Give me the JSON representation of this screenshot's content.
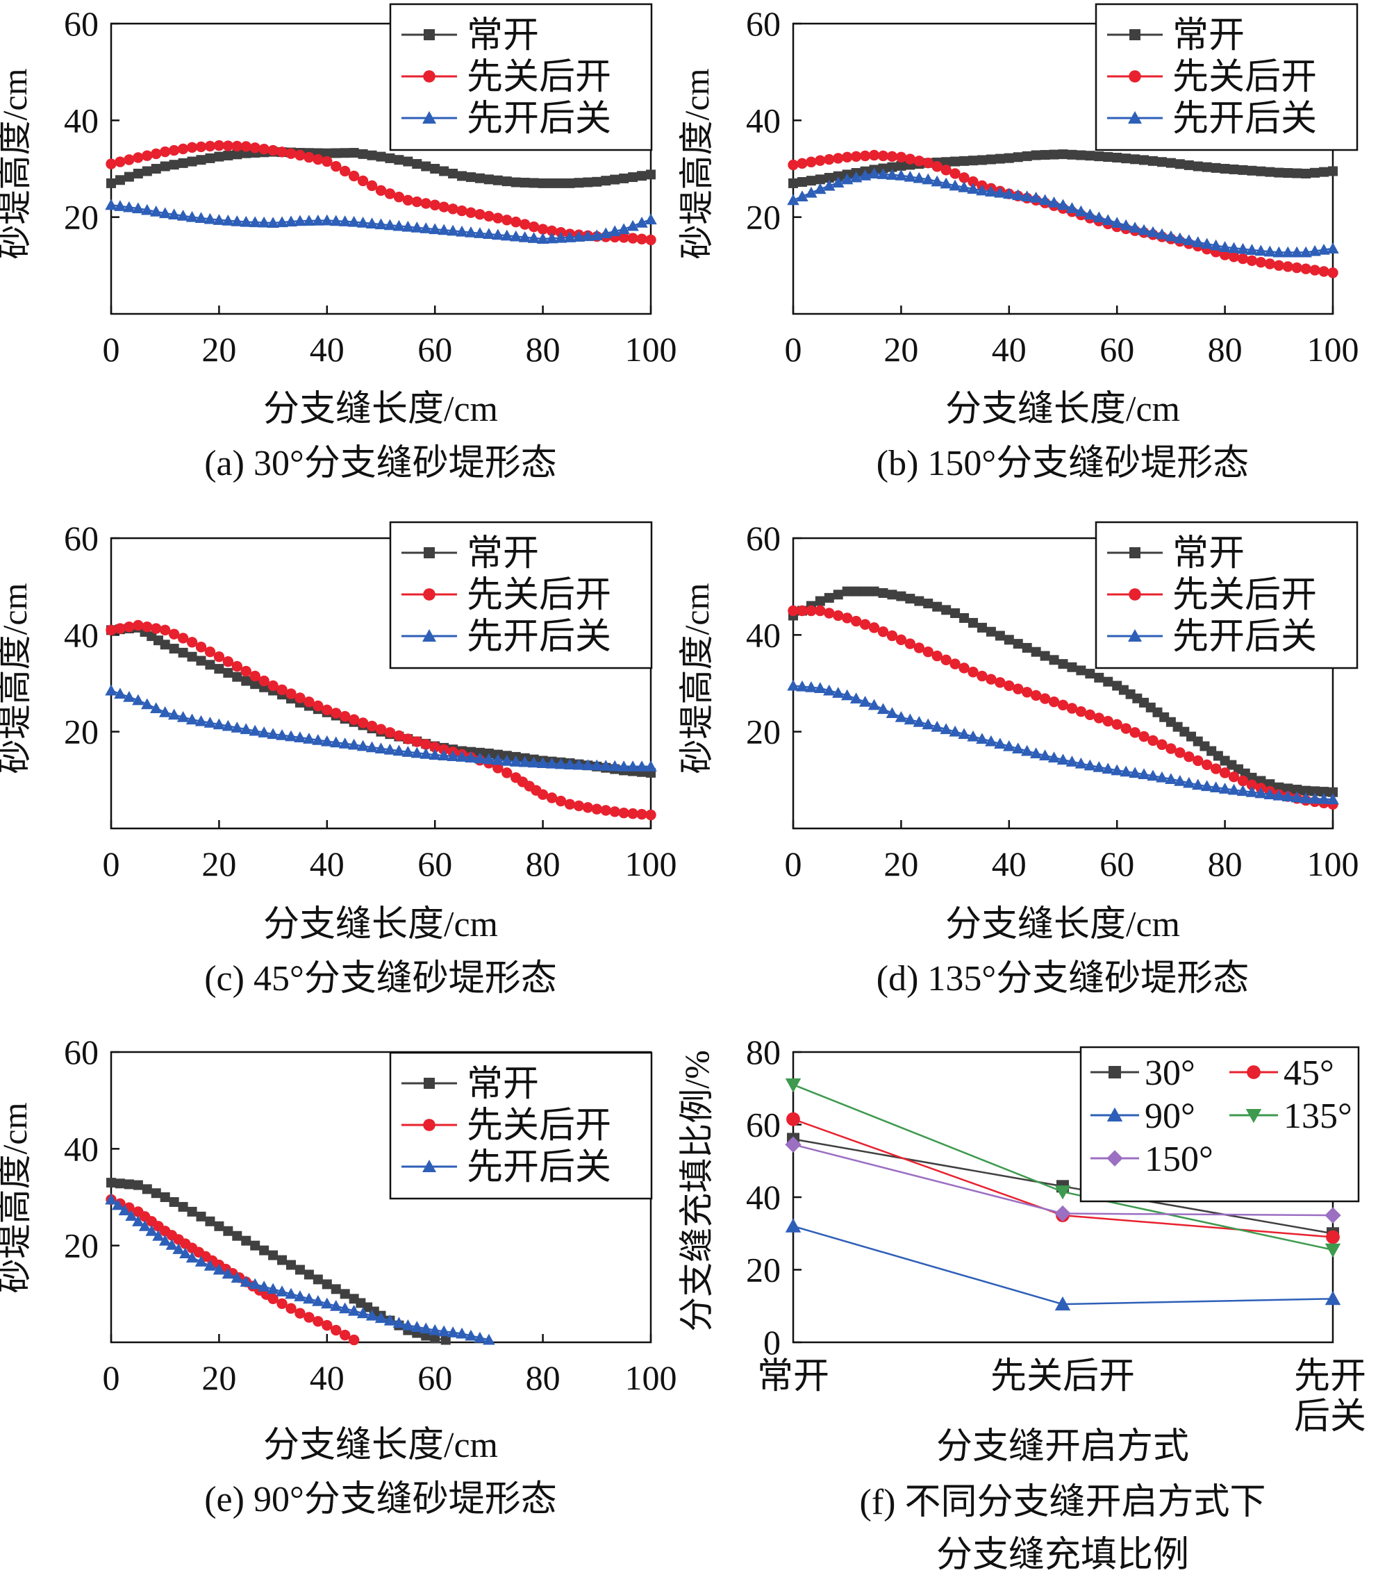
{
  "series_names": [
    "常开",
    "先关后开",
    "先开后关"
  ],
  "series_colors": [
    "#404040",
    "#e8212e",
    "#2e5fb8"
  ],
  "line_panels": [
    {
      "caption": "(a) 30°分支缝砂堤形态",
      "xlabel": "分支缝长度/cm",
      "ylabel": "砂堤高度/cm",
      "xticks": [
        "0",
        "20",
        "40",
        "60",
        "80",
        "100"
      ],
      "yticks": [
        "20",
        "40",
        "60"
      ]
    },
    {
      "caption": "(b) 150°分支缝砂堤形态",
      "xlabel": "分支缝长度/cm",
      "ylabel": "砂堤高度/cm",
      "xticks": [
        "0",
        "20",
        "40",
        "60",
        "80",
        "100"
      ],
      "yticks": [
        "20",
        "40",
        "60"
      ]
    },
    {
      "caption": "(c) 45°分支缝砂堤形态",
      "xlabel": "分支缝长度/cm",
      "ylabel": "砂堤高度/cm",
      "xticks": [
        "0",
        "20",
        "40",
        "60",
        "80",
        "100"
      ],
      "yticks": [
        "20",
        "40",
        "60"
      ]
    },
    {
      "caption": "(d) 135°分支缝砂堤形态",
      "xlabel": "分支缝长度/cm",
      "ylabel": "砂堤高度/cm",
      "xticks": [
        "0",
        "20",
        "40",
        "60",
        "80",
        "100"
      ],
      "yticks": [
        "20",
        "40",
        "60"
      ]
    },
    {
      "caption": "(e) 90°分支缝砂堤形态",
      "xlabel": "分支缝长度/cm",
      "ylabel": "砂堤高度/cm",
      "xticks": [
        "0",
        "20",
        "40",
        "60",
        "80",
        "100"
      ],
      "yticks": [
        "20",
        "40",
        "60"
      ]
    }
  ],
  "ratio_panel": {
    "caption_line1": "(f) 不同分支缝开启方式下",
    "caption_line2": "分支缝充填比例",
    "xlabel": "分支缝开启方式",
    "ylabel": "分支缝充填比例/%",
    "xticks": [
      "常开",
      "先关后开",
      "先开后关"
    ],
    "yticks": [
      "0",
      "20",
      "40",
      "60",
      "80"
    ],
    "legend": [
      "30°",
      "45°",
      "90°",
      "135°",
      "150°"
    ]
  },
  "chart_data": [
    {
      "type": "line",
      "title": "(a) 30°分支缝砂堤形态",
      "xlabel": "分支缝长度/cm",
      "ylabel": "砂堤高度/cm",
      "xlim": [
        0,
        100
      ],
      "ylim": [
        0,
        60
      ],
      "grid": false,
      "legend_position": "top-right",
      "series": [
        {
          "name": "常开",
          "x": [
            0,
            5,
            10,
            15,
            20,
            25,
            30,
            35,
            40,
            45,
            50,
            55,
            60,
            65,
            70,
            75,
            80,
            85,
            90,
            95,
            100
          ],
          "y": [
            27,
            29,
            30.5,
            31.5,
            32.5,
            33.2,
            33.5,
            33.3,
            33.2,
            33.3,
            32.5,
            31.5,
            30,
            28.5,
            27.8,
            27.2,
            27,
            27,
            27.3,
            28,
            28.8
          ]
        },
        {
          "name": "先关后开",
          "x": [
            0,
            5,
            10,
            15,
            20,
            25,
            30,
            35,
            40,
            45,
            50,
            55,
            60,
            65,
            70,
            75,
            80,
            85,
            90,
            95,
            100
          ],
          "y": [
            31,
            32.3,
            33.5,
            34.4,
            34.8,
            34.6,
            33.8,
            32.8,
            31.5,
            28.5,
            25.5,
            23.5,
            22.5,
            21.3,
            20.2,
            19,
            17.5,
            16.5,
            16,
            15.8,
            15.3
          ]
        },
        {
          "name": "先开后关",
          "x": [
            0,
            5,
            10,
            15,
            20,
            25,
            30,
            35,
            40,
            45,
            50,
            55,
            60,
            65,
            70,
            75,
            80,
            85,
            90,
            95,
            100
          ],
          "y": [
            22.5,
            21.8,
            20.8,
            20,
            19.4,
            19,
            18.8,
            19.2,
            19.3,
            19,
            18.5,
            18,
            17.5,
            17,
            16.5,
            16,
            15.5,
            15.8,
            16.2,
            17.5,
            19.5
          ]
        }
      ]
    },
    {
      "type": "line",
      "title": "(b) 150°分支缝砂堤形态",
      "xlabel": "分支缝长度/cm",
      "ylabel": "砂堤高度/cm",
      "xlim": [
        0,
        100
      ],
      "ylim": [
        0,
        60
      ],
      "grid": false,
      "legend_position": "top-right",
      "series": [
        {
          "name": "常开",
          "x": [
            0,
            5,
            10,
            15,
            20,
            25,
            30,
            35,
            40,
            45,
            50,
            55,
            60,
            65,
            70,
            75,
            80,
            85,
            90,
            95,
            100
          ],
          "y": [
            27,
            27.8,
            28.8,
            29.8,
            30.6,
            31.2,
            31.5,
            31.8,
            32.2,
            32.8,
            33,
            32.7,
            32.3,
            31.8,
            31.2,
            30.5,
            30,
            29.6,
            29.2,
            29,
            29.5
          ]
        },
        {
          "name": "先关后开",
          "x": [
            0,
            5,
            10,
            15,
            20,
            25,
            30,
            35,
            40,
            45,
            50,
            55,
            60,
            65,
            70,
            75,
            80,
            85,
            90,
            95,
            100
          ],
          "y": [
            30.8,
            31.7,
            32.4,
            32.8,
            32.4,
            31.2,
            29,
            26.5,
            24.8,
            23.5,
            21.8,
            19.8,
            18,
            16.8,
            15.5,
            14,
            12.2,
            11,
            10,
            9.3,
            8.5
          ]
        },
        {
          "name": "先开后关",
          "x": [
            0,
            5,
            10,
            15,
            20,
            25,
            30,
            35,
            40,
            45,
            50,
            55,
            60,
            65,
            70,
            75,
            80,
            85,
            90,
            95,
            100
          ],
          "y": [
            23.5,
            25.8,
            27.8,
            29,
            28.6,
            27.8,
            26.5,
            25.5,
            24.8,
            24,
            22.5,
            20.5,
            18.8,
            17.3,
            16,
            14.8,
            13.8,
            13.2,
            12.7,
            12.7,
            13.5
          ]
        }
      ]
    },
    {
      "type": "line",
      "title": "(c) 45°分支缝砂堤形态",
      "xlabel": "分支缝长度/cm",
      "ylabel": "砂堤高度/cm",
      "xlim": [
        0,
        100
      ],
      "ylim": [
        0,
        60
      ],
      "grid": false,
      "legend_position": "top-right",
      "series": [
        {
          "name": "常开",
          "x": [
            0,
            5,
            10,
            15,
            20,
            25,
            30,
            35,
            40,
            45,
            50,
            55,
            60,
            65,
            70,
            75,
            80,
            85,
            90,
            95,
            100
          ],
          "y": [
            41,
            41.5,
            38,
            35.5,
            33,
            30.5,
            28.5,
            26,
            24,
            22,
            20,
            18.5,
            17,
            16,
            15.5,
            14.8,
            14,
            13.5,
            12.8,
            12,
            11.5
          ]
        },
        {
          "name": "先关后开",
          "x": [
            0,
            5,
            10,
            15,
            20,
            25,
            30,
            35,
            40,
            45,
            50,
            55,
            60,
            65,
            70,
            75,
            80,
            85,
            90,
            95,
            100
          ],
          "y": [
            41,
            42,
            41,
            38.5,
            35.5,
            32.5,
            29.5,
            27,
            24.5,
            22.5,
            20.5,
            18.5,
            16.8,
            15.3,
            13.5,
            10.5,
            7,
            5,
            4,
            3.2,
            2.8
          ]
        },
        {
          "name": "先开后关",
          "x": [
            0,
            5,
            10,
            15,
            20,
            25,
            30,
            35,
            40,
            45,
            50,
            55,
            60,
            65,
            70,
            75,
            80,
            85,
            90,
            95,
            100
          ],
          "y": [
            28.5,
            26.5,
            24,
            22.5,
            21.5,
            20.5,
            19.5,
            18.8,
            18,
            17.3,
            16.5,
            15.8,
            15.2,
            14.8,
            14.3,
            13.8,
            13.5,
            13.2,
            13,
            12.8,
            12.8
          ]
        }
      ]
    },
    {
      "type": "line",
      "title": "(d) 135°分支缝砂堤形态",
      "xlabel": "分支缝长度/cm",
      "ylabel": "砂堤高度/cm",
      "xlim": [
        0,
        100
      ],
      "ylim": [
        0,
        60
      ],
      "grid": false,
      "legend_position": "top-right",
      "series": [
        {
          "name": "常开",
          "x": [
            0,
            5,
            10,
            15,
            20,
            25,
            30,
            35,
            40,
            45,
            50,
            55,
            60,
            65,
            70,
            75,
            80,
            85,
            90,
            95,
            100
          ],
          "y": [
            44,
            47,
            49,
            49,
            48,
            46.5,
            44.5,
            41.5,
            39,
            36.5,
            34,
            32,
            29.5,
            26,
            22,
            18,
            14,
            10.5,
            8.5,
            7.8,
            7.5
          ]
        },
        {
          "name": "先关后开",
          "x": [
            0,
            5,
            10,
            15,
            20,
            25,
            30,
            35,
            40,
            45,
            50,
            55,
            60,
            65,
            70,
            75,
            80,
            85,
            90,
            95,
            100
          ],
          "y": [
            45,
            45,
            43.5,
            41.5,
            39,
            36.5,
            34,
            31.5,
            29.5,
            27.5,
            25.5,
            23.5,
            21.5,
            19,
            16.5,
            14,
            11.5,
            9,
            7,
            5.8,
            5
          ]
        },
        {
          "name": "先开后关",
          "x": [
            0,
            5,
            10,
            15,
            20,
            25,
            30,
            35,
            40,
            45,
            50,
            55,
            60,
            65,
            70,
            75,
            80,
            85,
            90,
            95,
            100
          ],
          "y": [
            29.5,
            29,
            27.5,
            25.5,
            23,
            21.5,
            20,
            18.5,
            17,
            15.5,
            14.2,
            13,
            12,
            11.2,
            10.2,
            9,
            8.2,
            7.5,
            6.8,
            6.2,
            6
          ]
        }
      ]
    },
    {
      "type": "line",
      "title": "(e) 90°分支缝砂堤形态",
      "xlabel": "分支缝长度/cm",
      "ylabel": "砂堤高度/cm",
      "xlim": [
        0,
        100
      ],
      "ylim": [
        0,
        60
      ],
      "grid": false,
      "legend_position": "top-right",
      "series": [
        {
          "name": "常开",
          "x": [
            0,
            5,
            10,
            15,
            20,
            25,
            30,
            35,
            40,
            45,
            50,
            55,
            60,
            62
          ],
          "y": [
            33,
            32.5,
            30,
            27,
            24,
            21,
            18,
            15,
            12,
            9,
            5.5,
            2.5,
            0.8,
            0.5
          ]
        },
        {
          "name": "先关后开",
          "x": [
            0,
            5,
            10,
            15,
            20,
            25,
            30,
            35,
            40,
            45
          ],
          "y": [
            29.5,
            27,
            23,
            19.5,
            16,
            12.5,
            9,
            6,
            3.5,
            0.5
          ]
        },
        {
          "name": "先开后关",
          "x": [
            0,
            5,
            10,
            15,
            20,
            25,
            30,
            35,
            40,
            45,
            50,
            55,
            60,
            65,
            70
          ],
          "y": [
            29.5,
            25,
            21,
            17.5,
            15,
            12.5,
            11,
            9.5,
            8,
            6.5,
            5,
            3.5,
            2.5,
            1.8,
            0.5
          ]
        }
      ]
    },
    {
      "type": "line",
      "title": "(f) 不同分支缝开启方式下 分支缝充填比例",
      "xlabel": "分支缝开启方式",
      "ylabel": "分支缝充填比例/%",
      "categories": [
        "常开",
        "先关后开",
        "先开后关"
      ],
      "ylim": [
        0,
        80
      ],
      "grid": false,
      "legend_position": "top-right",
      "series": [
        {
          "name": "30°",
          "values": [
            56,
            43,
            30
          ],
          "color": "#404040",
          "marker": "square"
        },
        {
          "name": "45°",
          "values": [
            61.5,
            35,
            29
          ],
          "color": "#e8212e",
          "marker": "circle"
        },
        {
          "name": "90°",
          "values": [
            32,
            10.5,
            12
          ],
          "color": "#2e5fb8",
          "marker": "triangle"
        },
        {
          "name": "135°",
          "values": [
            71,
            41.5,
            25.5
          ],
          "color": "#3d9a4e",
          "marker": "triangle-down"
        },
        {
          "name": "150°",
          "values": [
            54.5,
            35.5,
            35
          ],
          "color": "#9b6fc2",
          "marker": "diamond"
        }
      ]
    }
  ]
}
